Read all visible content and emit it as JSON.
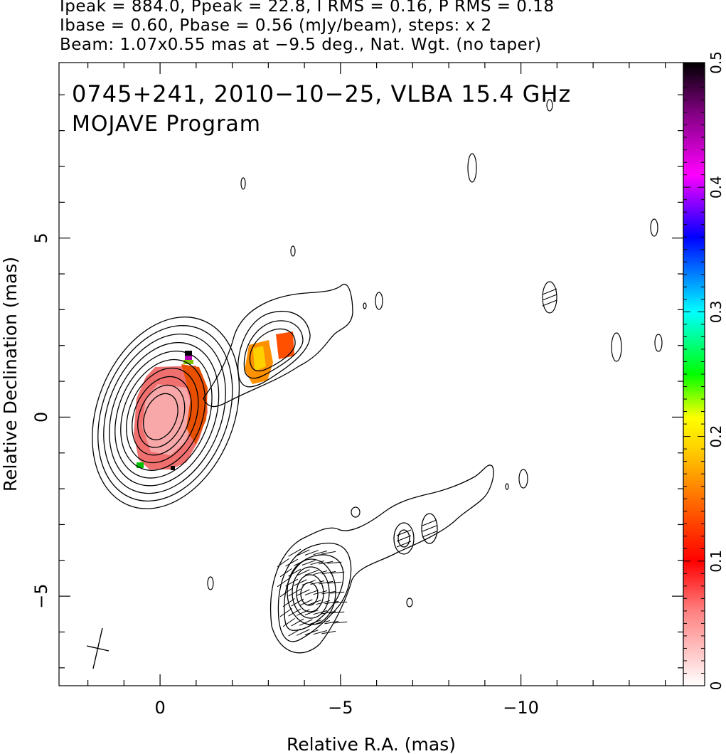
{
  "header": {
    "line1": "Ipeak = 884.0, Ppeak = 22.8, I RMS = 0.16, P RMS = 0.18",
    "line2": "Ibase = 0.60, Pbase = 0.56 (mJy/beam), steps: x 2",
    "line3": "Beam: 1.07x0.55 mas at −9.5 deg., Nat. Wgt. (no taper)"
  },
  "chart_data": {
    "type": "heatmap",
    "title": "0745+241, 2010−10−25, VLBA 15.4 GHz",
    "subtitle": "MOJAVE Program",
    "xlabel": "Relative R.A. (mas)",
    "ylabel": "Relative Declination (mas)",
    "xlim": [
      2.8,
      -14.5
    ],
    "ylim": [
      -7.5,
      9.9
    ],
    "x_major_ticks": [
      0,
      -5,
      -10
    ],
    "x_tick_labels": [
      "0",
      "−5",
      "−10"
    ],
    "y_major_ticks": [
      -5,
      0,
      5
    ],
    "y_tick_labels": [
      "−5",
      "0",
      "5"
    ],
    "colorbar": {
      "range": [
        0,
        0.5
      ],
      "ticks": [
        0,
        0.1,
        0.2,
        0.3,
        0.4,
        0.5
      ],
      "tick_labels": [
        "0",
        "0.1",
        "0.2",
        "0.3",
        "0.4",
        "0.5"
      ],
      "colors": [
        "#ffffff",
        "#ff0000",
        "#ff8000",
        "#ffff00",
        "#00ff00",
        "#00ffff",
        "#0000ff",
        "#ff00ff",
        "#000000"
      ]
    },
    "stokes_I_contours": {
      "peak_mJy_per_beam": 884.0,
      "base_mJy_per_beam": 0.6,
      "step_factor": 2,
      "core_position": [
        0,
        0
      ],
      "levels_core": 10
    },
    "polarization_panel_offset": [
      -4.2,
      -4.9
    ],
    "beam": {
      "major_mas": 1.07,
      "minor_mas": 0.55,
      "pa_deg": -9.5
    }
  }
}
